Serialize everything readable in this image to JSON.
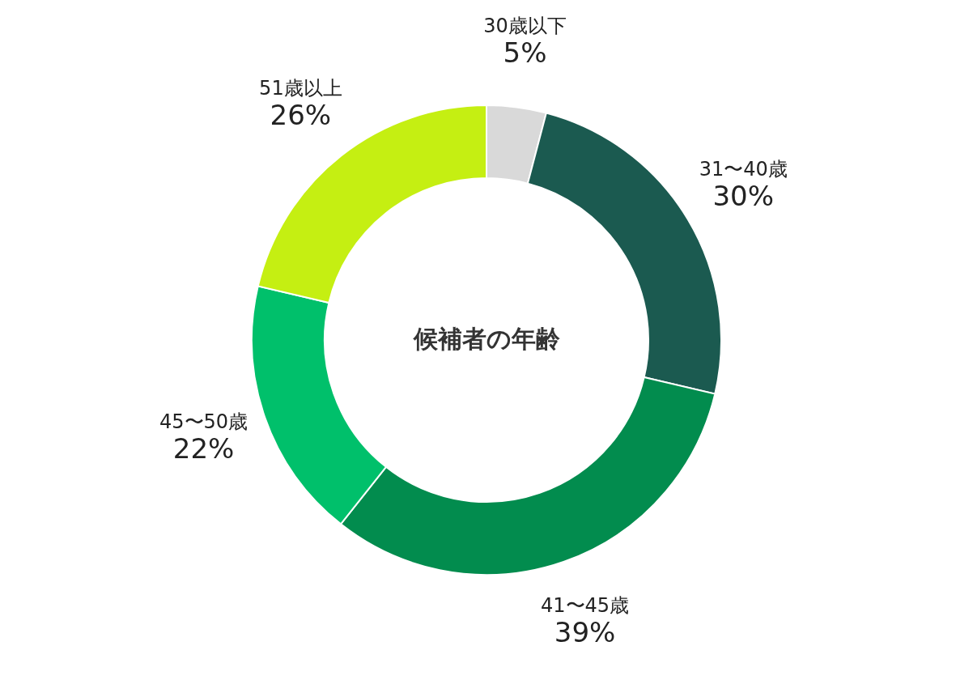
{
  "chart_data": {
    "type": "donut",
    "title": "候補者の年齢",
    "categories": [
      "30歳以下",
      "31〜40歳",
      "41〜45歳",
      "45〜50歳",
      "51歳以上"
    ],
    "values": [
      5,
      30,
      39,
      22,
      26
    ],
    "value_labels": [
      "5%",
      "30%",
      "39%",
      "22%",
      "26%"
    ],
    "colors": [
      "#d9d9d9",
      "#1b5a50",
      "#028c4e",
      "#00c06b",
      "#c5ef12"
    ]
  }
}
